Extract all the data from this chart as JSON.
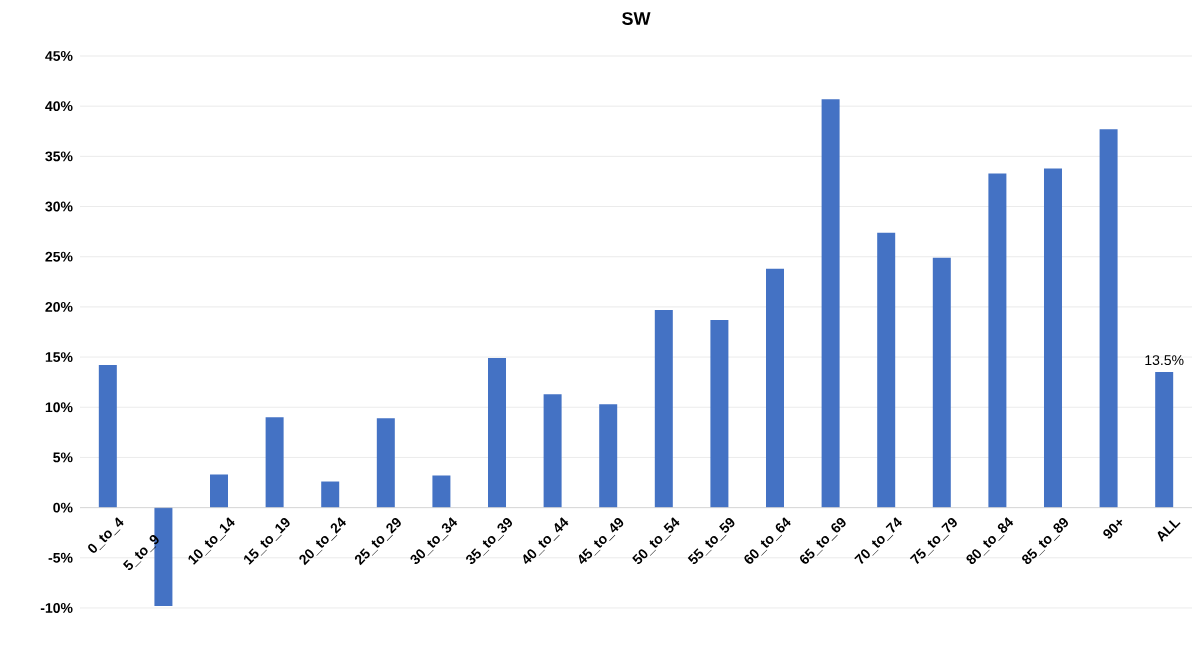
{
  "chart_data": {
    "type": "bar",
    "title": "SW",
    "categories": [
      "0_to_4",
      "5_to_9",
      "10_to_14",
      "15_to_19",
      "20_to_24",
      "25_to_29",
      "30_to_34",
      "35_to_39",
      "40_to_44",
      "45_to_49",
      "50_to_54",
      "55_to_59",
      "60_to_64",
      "65_to_69",
      "70_to_74",
      "75_to_79",
      "80_to_84",
      "85_to_89",
      "90+",
      "ALL"
    ],
    "values": [
      14.2,
      -9.8,
      3.3,
      9.0,
      2.6,
      8.9,
      3.2,
      14.9,
      11.3,
      10.3,
      19.7,
      18.7,
      23.8,
      40.7,
      27.4,
      24.9,
      33.3,
      33.8,
      37.7,
      13.5
    ],
    "value_labels": [
      null,
      null,
      null,
      null,
      null,
      null,
      null,
      null,
      null,
      null,
      null,
      null,
      null,
      null,
      null,
      null,
      null,
      null,
      null,
      "13.5%"
    ],
    "color": "#4472c4",
    "ylim": [
      -10,
      45
    ],
    "yticks": [
      {
        "value": -10,
        "label": "-10%"
      },
      {
        "value": -5,
        "label": "-5%"
      },
      {
        "value": 0,
        "label": "0%"
      },
      {
        "value": 5,
        "label": "5%"
      },
      {
        "value": 10,
        "label": "10%"
      },
      {
        "value": 15,
        "label": "15%"
      },
      {
        "value": 20,
        "label": "20%"
      },
      {
        "value": 25,
        "label": "25%"
      },
      {
        "value": 30,
        "label": "30%"
      },
      {
        "value": 35,
        "label": "35%"
      },
      {
        "value": 40,
        "label": "40%"
      },
      {
        "value": 45,
        "label": "45%"
      }
    ],
    "grid": "y"
  }
}
